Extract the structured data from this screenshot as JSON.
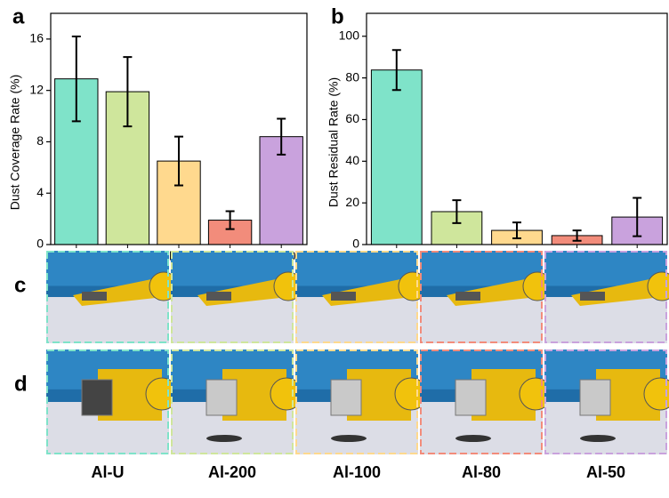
{
  "chart_data": [
    {
      "type": "bar",
      "panel_label": "a",
      "ylabel": "Dust Coverage Rate (%)",
      "categories": [
        "Al-U",
        "Al-200",
        "Al-100",
        "Al-80",
        "Al-50"
      ],
      "values": [
        12.9,
        11.9,
        6.5,
        1.9,
        8.4
      ],
      "errors": [
        3.3,
        2.7,
        1.9,
        0.7,
        1.4
      ],
      "colors": [
        "#7fe3c9",
        "#cfe69c",
        "#ffd98e",
        "#f28c7b",
        "#c9a2dd"
      ],
      "ylim": [
        0,
        18
      ],
      "yticks": [
        0,
        4,
        8,
        12,
        16
      ]
    },
    {
      "type": "bar",
      "panel_label": "b",
      "ylabel": "Dust Residual Rate (%)",
      "categories": [
        "Al-U",
        "Al-200",
        "Al-100",
        "Al-80",
        "Al-50"
      ],
      "values": [
        83.8,
        15.8,
        6.8,
        4.3,
        13.2
      ],
      "errors": [
        9.6,
        5.5,
        3.8,
        2.5,
        9.2
      ],
      "colors": [
        "#7fe3c9",
        "#cfe69c",
        "#ffd98e",
        "#f28c7b",
        "#c9a2dd"
      ],
      "ylim": [
        0,
        111
      ],
      "yticks": [
        0,
        20,
        40,
        60,
        80,
        100
      ]
    }
  ],
  "photo_panels": {
    "rows": [
      "c",
      "d"
    ],
    "columns": [
      "Al-U",
      "Al-200",
      "Al-100",
      "Al-80",
      "Al-50"
    ]
  }
}
